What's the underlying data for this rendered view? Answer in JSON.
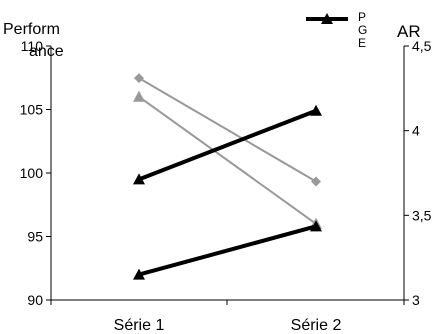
{
  "chart_data": {
    "type": "line",
    "categories": [
      "Série 1",
      "Série 2"
    ],
    "ylabel": "Perform ance",
    "ylabel_lines": [
      "Perform",
      "ance"
    ],
    "y2label": "AR",
    "ylim": [
      90,
      110
    ],
    "y2lim": [
      3,
      4.5
    ],
    "y_ticks": [
      90,
      95,
      100,
      105,
      110
    ],
    "y_tick_labels": [
      "90",
      "95",
      "100",
      "105",
      "110"
    ],
    "y2_ticks": [
      3,
      3.5,
      4,
      4.5
    ],
    "y2_tick_labels": [
      "3",
      "3,5",
      "4",
      "4,5"
    ],
    "legend": {
      "position": "top-right",
      "label_lines": [
        "P",
        "G",
        "E"
      ]
    },
    "grid": false,
    "series": [
      {
        "axis": "left",
        "color": "#000000",
        "marker": "triangle",
        "values": [
          99.5,
          104.9
        ]
      },
      {
        "axis": "left",
        "color": "#000000",
        "marker": "triangle",
        "values": [
          92.0,
          95.8
        ]
      },
      {
        "axis": "right",
        "color": "#999999",
        "marker": "diamond",
        "values": [
          4.31,
          3.7
        ]
      },
      {
        "axis": "right",
        "color": "#999999",
        "marker": "triangle",
        "values": [
          4.2,
          3.45
        ]
      }
    ]
  }
}
